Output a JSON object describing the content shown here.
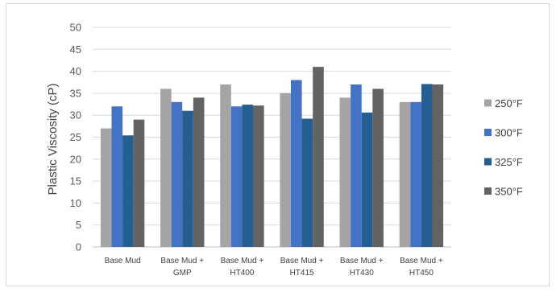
{
  "chart_data": {
    "type": "bar",
    "title": "",
    "xlabel": "",
    "ylabel": "Plastic Viscosity (cP)",
    "ylim": [
      0,
      50
    ],
    "yticks": [
      0,
      5,
      10,
      15,
      20,
      25,
      30,
      35,
      40,
      45,
      50
    ],
    "grid": true,
    "legend_position": "right",
    "categories": [
      [
        "Base Mud"
      ],
      [
        "Base Mud +",
        "GMP"
      ],
      [
        "Base Mud +",
        "HT400"
      ],
      [
        "Base Mud +",
        "HT415"
      ],
      [
        "Base Mud +",
        "HT430"
      ],
      [
        "Base Mud +",
        "HT450"
      ]
    ],
    "series": [
      {
        "name": "250°F",
        "color": "#a5a5a5",
        "values": [
          27,
          36,
          37,
          35,
          34,
          33
        ]
      },
      {
        "name": "300°F",
        "color": "#4472c4",
        "values": [
          32,
          33,
          32,
          38,
          37,
          33
        ]
      },
      {
        "name": "325°F",
        "color": "#255e91",
        "values": [
          25.4,
          31,
          32.4,
          29.2,
          30.6,
          37.1
        ]
      },
      {
        "name": "350°F",
        "color": "#636363",
        "values": [
          29,
          34,
          32.2,
          41,
          36,
          37
        ]
      }
    ]
  }
}
